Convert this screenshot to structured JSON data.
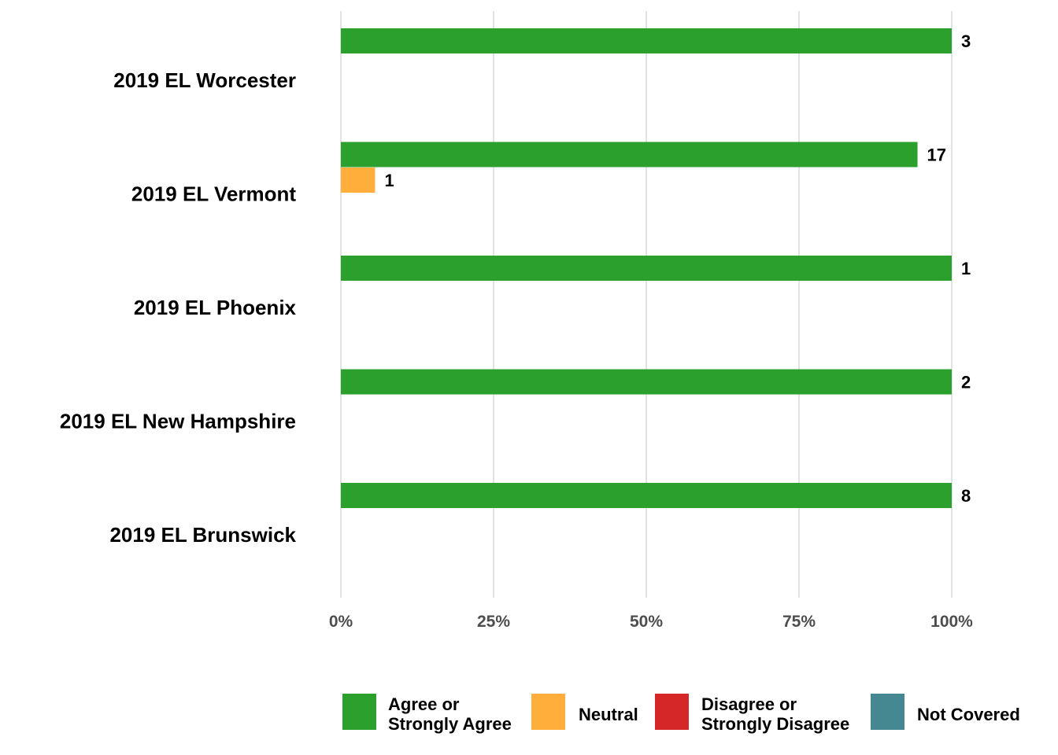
{
  "chart_data": {
    "type": "bar",
    "orientation": "horizontal",
    "categories": [
      "2019 EL Worcester",
      "2019 EL Vermont",
      "2019 EL Phoenix",
      "2019 EL New Hampshire",
      "2019 EL Brunswick"
    ],
    "series": [
      {
        "name": "Agree or Strongly Agree",
        "color": "#2ca02c",
        "values": [
          100,
          94.4,
          100,
          100,
          100
        ],
        "labels": [
          "3",
          "17",
          "1",
          "2",
          "8"
        ]
      },
      {
        "name": "Neutral",
        "color": "#ffae3b",
        "values": [
          0,
          5.6,
          0,
          0,
          0
        ],
        "labels": [
          "",
          "1",
          "",
          "",
          ""
        ]
      },
      {
        "name": "Disagree or Strongly Disagree",
        "color": "#d62728",
        "values": [
          0,
          0,
          0,
          0,
          0
        ],
        "labels": [
          "",
          "",
          "",
          "",
          ""
        ]
      },
      {
        "name": "Not Covered",
        "color": "#468891",
        "values": [
          0,
          0,
          0,
          0,
          0
        ],
        "labels": [
          "",
          "",
          "",
          "",
          ""
        ]
      }
    ],
    "x_ticks": [
      "0%",
      "25%",
      "50%",
      "75%",
      "100%"
    ],
    "xlim": [
      0,
      100
    ],
    "grid": true,
    "legend_position": "bottom",
    "legend_labels": [
      [
        "Agree or",
        "Strongly Agree"
      ],
      [
        "Neutral"
      ],
      [
        "Disagree or",
        "Strongly Disagree"
      ],
      [
        "Not Covered"
      ]
    ]
  }
}
